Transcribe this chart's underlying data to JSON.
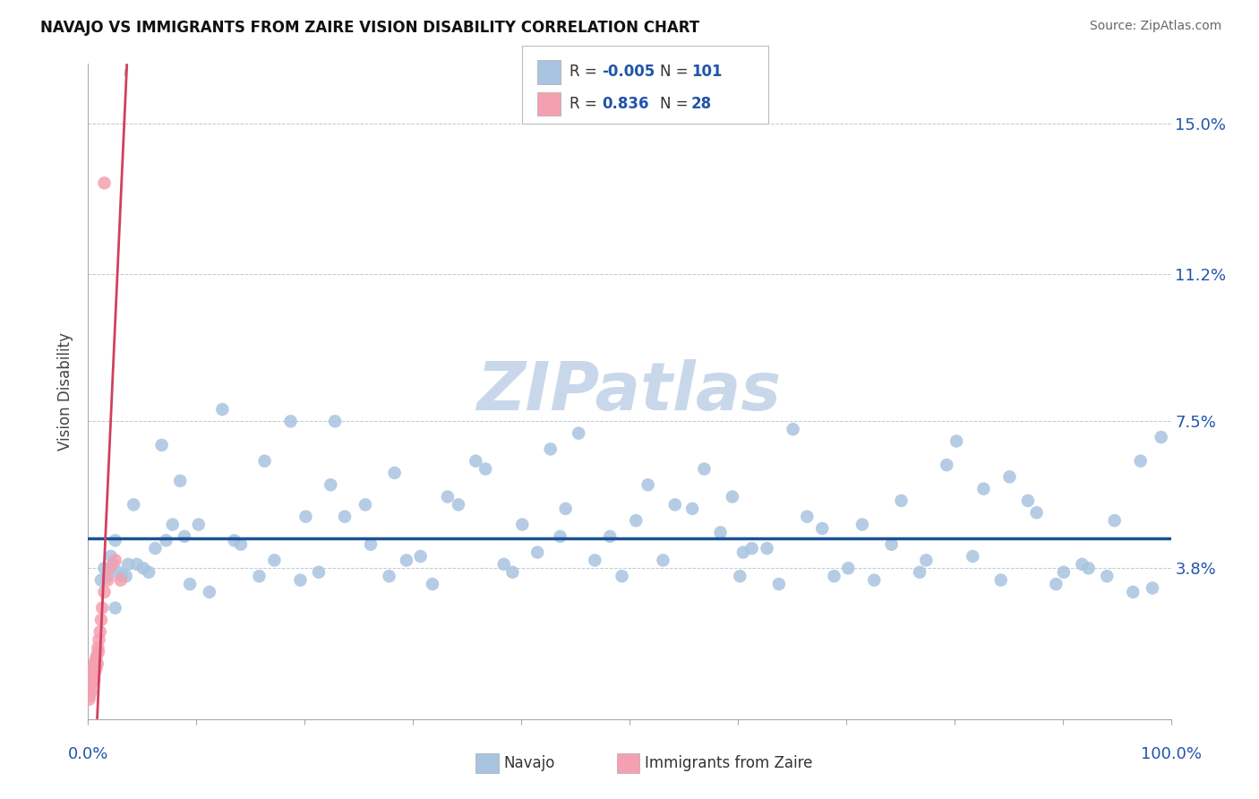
{
  "title": "NAVAJO VS IMMIGRANTS FROM ZAIRE VISION DISABILITY CORRELATION CHART",
  "source": "Source: ZipAtlas.com",
  "ylabel": "Vision Disability",
  "ytick_labels": [
    "3.8%",
    "7.5%",
    "11.2%",
    "15.0%"
  ],
  "ytick_values": [
    3.8,
    7.5,
    11.2,
    15.0
  ],
  "xmin": 0.0,
  "xmax": 100.0,
  "ymin": 0.0,
  "ymax": 16.5,
  "navajo_R": -0.005,
  "navajo_N": 101,
  "zaire_R": 0.836,
  "zaire_N": 28,
  "navajo_color": "#a8c4e0",
  "zaire_color": "#f4a0b0",
  "navajo_line_color": "#1a5296",
  "zaire_line_color": "#d04060",
  "watermark": "ZIPatlas",
  "watermark_color": "#c8d8ea",
  "navajo_x": [
    1.2,
    1.5,
    1.8,
    2.1,
    2.3,
    2.5,
    2.8,
    3.1,
    3.5,
    3.7,
    4.2,
    4.5,
    5.1,
    5.6,
    6.2,
    6.8,
    7.2,
    7.8,
    8.5,
    8.9,
    9.4,
    10.2,
    11.2,
    12.4,
    13.5,
    14.1,
    15.8,
    16.3,
    17.2,
    18.7,
    19.6,
    20.1,
    21.3,
    22.4,
    23.7,
    25.6,
    26.1,
    27.8,
    28.3,
    29.4,
    30.7,
    31.8,
    33.2,
    34.2,
    35.8,
    36.7,
    38.4,
    39.2,
    40.1,
    41.5,
    42.7,
    44.1,
    45.3,
    46.8,
    48.2,
    49.3,
    50.6,
    51.7,
    53.1,
    54.2,
    55.8,
    56.9,
    58.4,
    59.5,
    60.2,
    61.3,
    62.7,
    63.8,
    65.1,
    66.4,
    67.8,
    68.9,
    70.2,
    71.5,
    72.6,
    74.2,
    75.1,
    76.8,
    77.4,
    79.3,
    80.2,
    81.7,
    82.7,
    84.3,
    85.1,
    86.8,
    87.6,
    89.4,
    90.1,
    91.8,
    92.4,
    94.1,
    94.8,
    96.5,
    97.2,
    98.3,
    99.1,
    43.6,
    22.8,
    2.5,
    60.5
  ],
  "navajo_y": [
    3.5,
    3.8,
    3.6,
    4.1,
    3.9,
    2.8,
    3.7,
    3.6,
    3.6,
    3.9,
    5.4,
    3.9,
    3.8,
    3.7,
    4.3,
    6.9,
    4.5,
    4.9,
    6.0,
    4.6,
    3.4,
    4.9,
    3.2,
    7.8,
    4.5,
    4.4,
    3.6,
    6.5,
    4.0,
    7.5,
    3.5,
    5.1,
    3.7,
    5.9,
    5.1,
    5.4,
    4.4,
    3.6,
    6.2,
    4.0,
    4.1,
    3.4,
    5.6,
    5.4,
    6.5,
    6.3,
    3.9,
    3.7,
    4.9,
    4.2,
    6.8,
    5.3,
    7.2,
    4.0,
    4.6,
    3.6,
    5.0,
    5.9,
    4.0,
    5.4,
    5.3,
    6.3,
    4.7,
    5.6,
    3.6,
    4.3,
    4.3,
    3.4,
    7.3,
    5.1,
    4.8,
    3.6,
    3.8,
    4.9,
    3.5,
    4.4,
    5.5,
    3.7,
    4.0,
    6.4,
    7.0,
    4.1,
    5.8,
    3.5,
    6.1,
    5.5,
    5.2,
    3.4,
    3.7,
    3.9,
    3.8,
    3.6,
    5.0,
    3.2,
    6.5,
    3.3,
    7.1,
    4.6,
    7.5,
    4.5,
    4.2
  ],
  "zaire_x": [
    0.1,
    0.15,
    0.2,
    0.25,
    0.3,
    0.35,
    0.4,
    0.45,
    0.5,
    0.55,
    0.6,
    0.65,
    0.7,
    0.75,
    0.8,
    0.85,
    0.9,
    0.95,
    1.0,
    1.1,
    1.2,
    1.3,
    1.5,
    1.8,
    2.0,
    2.5,
    3.0,
    1.5
  ],
  "zaire_y": [
    0.5,
    0.6,
    0.8,
    0.7,
    1.0,
    0.9,
    1.2,
    1.1,
    1.3,
    1.0,
    1.4,
    1.2,
    1.5,
    1.3,
    1.6,
    1.4,
    1.8,
    1.7,
    2.0,
    2.2,
    2.5,
    2.8,
    3.2,
    3.5,
    3.8,
    4.0,
    3.5,
    13.5
  ],
  "zaire_line_xstart": 0.0,
  "zaire_line_xend": 3.5,
  "zaire_line_ystart": -5.0,
  "zaire_line_yend": 16.0,
  "navajo_line_y": 4.55,
  "dashed_line_x": [
    1.5,
    2.5
  ],
  "dashed_line_y": [
    16.5,
    20.0
  ]
}
